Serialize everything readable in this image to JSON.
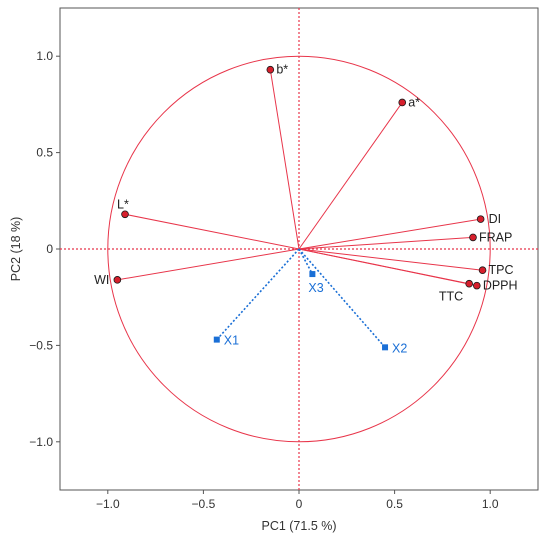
{
  "chart_data": {
    "type": "scatter",
    "subtype": "pca-correlation-circle",
    "xlabel": "PC1  (71.5 %)",
    "ylabel": "PC2  (18 %)",
    "xlim": [
      -1.25,
      1.25
    ],
    "ylim": [
      -1.25,
      1.25
    ],
    "xticks": [
      -1.0,
      -0.5,
      0,
      0.5,
      1.0
    ],
    "yticks": [
      -1.0,
      -0.5,
      0,
      0.5,
      1.0
    ],
    "xtick_labels": [
      "−1.0",
      "−0.5",
      "0",
      "0.5",
      "1.0"
    ],
    "ytick_labels": [
      "−1.0",
      "−0.5",
      "0",
      "0.5",
      "1.0"
    ],
    "circle_radius": 1.0,
    "grid": false,
    "colors": {
      "active": "#e8354a",
      "supplementary": "#1a6fd6",
      "frame": "#555555"
    },
    "series": [
      {
        "kind": "active",
        "points": [
          {
            "label": "b*",
            "x": -0.15,
            "y": 0.93
          },
          {
            "label": "a*",
            "x": 0.54,
            "y": 0.76
          },
          {
            "label": "L*",
            "x": -0.91,
            "y": 0.18
          },
          {
            "label": "WI",
            "x": -0.95,
            "y": -0.16
          },
          {
            "label": "DI",
            "x": 0.95,
            "y": 0.155
          },
          {
            "label": "FRAP",
            "x": 0.91,
            "y": 0.06
          },
          {
            "label": "TPC",
            "x": 0.96,
            "y": -0.11
          },
          {
            "label": "DPPH",
            "x": 0.93,
            "y": -0.19
          },
          {
            "label": "TTC",
            "x": 0.89,
            "y": -0.18
          }
        ]
      },
      {
        "kind": "supplementary",
        "points": [
          {
            "label": "X1",
            "x": -0.43,
            "y": -0.47
          },
          {
            "label": "X2",
            "x": 0.45,
            "y": -0.51
          },
          {
            "label": "X3",
            "x": 0.07,
            "y": -0.13
          }
        ]
      }
    ]
  }
}
